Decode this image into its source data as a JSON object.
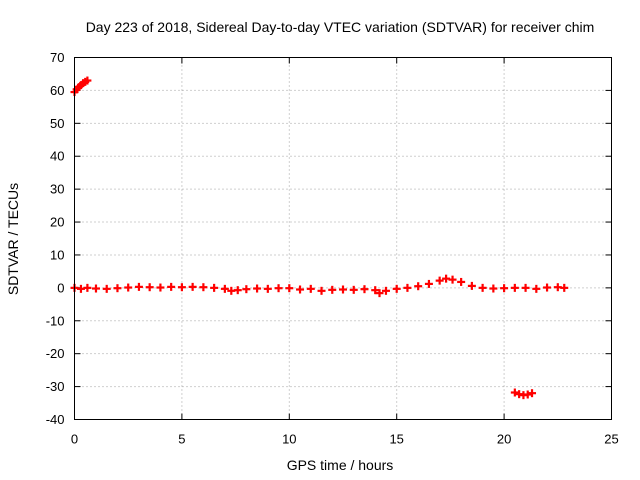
{
  "chart_data": {
    "type": "scatter",
    "title": "Day 223 of 2018, Sidereal Day-to-day VTEC variation (SDTVAR) for receiver chim",
    "xlabel": "GPS time / hours",
    "ylabel": "SDTVAR / TECUs",
    "xlim": [
      0,
      25
    ],
    "ylim": [
      -40,
      70
    ],
    "xticks": [
      0,
      5,
      10,
      15,
      20,
      25
    ],
    "yticks": [
      -40,
      -30,
      -20,
      -10,
      0,
      10,
      20,
      30,
      40,
      50,
      60,
      70
    ],
    "grid": true,
    "marker": "plus",
    "series": [
      {
        "name": "SDTVAR",
        "color": "#ff0000",
        "x": [
          0.0,
          0.1,
          0.2,
          0.3,
          0.4,
          0.5,
          0.6,
          0.0,
          0.3,
          0.6,
          1.0,
          1.5,
          2.0,
          2.5,
          3.0,
          3.5,
          4.0,
          4.5,
          5.0,
          5.5,
          6.0,
          6.5,
          7.0,
          7.3,
          7.6,
          8.0,
          8.5,
          9.0,
          9.5,
          10.0,
          10.5,
          11.0,
          11.5,
          12.0,
          12.5,
          13.0,
          13.5,
          14.0,
          14.2,
          14.5,
          15.0,
          15.5,
          16.0,
          16.5,
          17.0,
          17.3,
          17.6,
          18.0,
          18.5,
          19.0,
          19.5,
          20.0,
          20.5,
          21.0,
          21.5,
          22.0,
          22.5,
          22.8,
          20.5,
          20.7,
          20.9,
          21.1,
          21.3
        ],
        "y": [
          59.5,
          60.3,
          61.0,
          61.6,
          62.2,
          62.6,
          63.0,
          0.0,
          -0.3,
          0.0,
          -0.2,
          -0.3,
          -0.1,
          0.1,
          0.3,
          0.2,
          0.1,
          0.3,
          0.2,
          0.3,
          0.2,
          0.0,
          -0.3,
          -0.9,
          -0.7,
          -0.4,
          -0.2,
          -0.3,
          -0.1,
          -0.1,
          -0.5,
          -0.3,
          -0.9,
          -0.6,
          -0.5,
          -0.6,
          -0.4,
          -0.7,
          -1.6,
          -0.9,
          -0.3,
          0.0,
          0.5,
          1.2,
          2.2,
          2.8,
          2.5,
          1.8,
          0.6,
          0.0,
          -0.2,
          -0.1,
          0.0,
          0.0,
          -0.3,
          0.1,
          0.2,
          0.0,
          -31.8,
          -32.3,
          -32.6,
          -32.4,
          -32.0
        ]
      }
    ]
  }
}
